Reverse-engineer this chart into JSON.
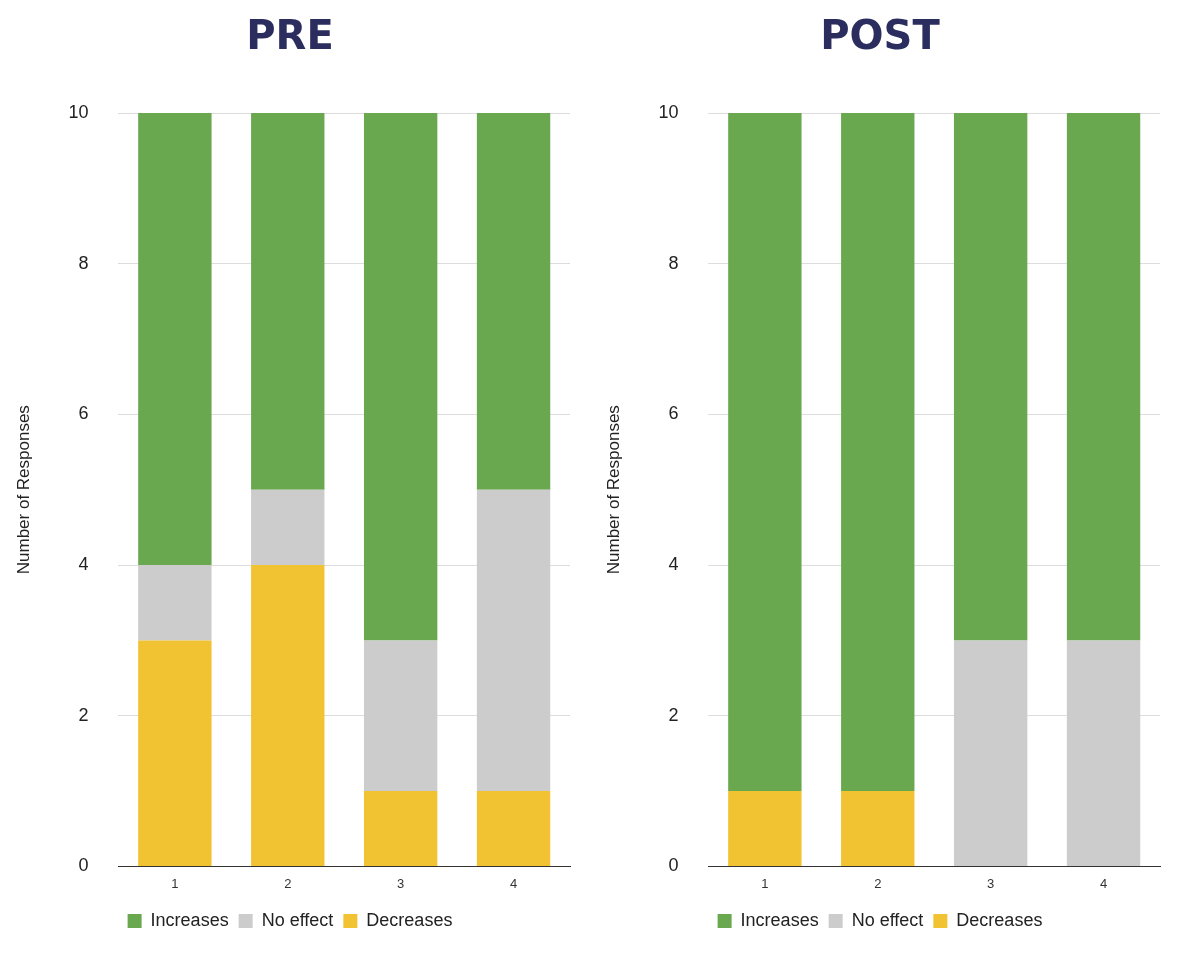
{
  "chart_data": [
    {
      "type": "bar",
      "title": "PRE",
      "ylabel": "Number of Responses",
      "categories": [
        "1",
        "2",
        "3",
        "4"
      ],
      "stacked": true,
      "grid": "y",
      "legend": "bottom",
      "ylim": [
        0,
        10
      ],
      "yticks": [
        0,
        2,
        4,
        6,
        8,
        10
      ],
      "series": [
        {
          "name": "Decreases",
          "color": "#f1c232",
          "values": [
            3,
            4,
            1,
            1
          ]
        },
        {
          "name": "No effect",
          "color": "#cccccc",
          "values": [
            1,
            1,
            2,
            4
          ]
        },
        {
          "name": "Increases",
          "color": "#6aa84f",
          "values": [
            6,
            5,
            7,
            5
          ]
        }
      ]
    },
    {
      "type": "bar",
      "title": "POST",
      "ylabel": "Number of Responses",
      "categories": [
        "1",
        "2",
        "3",
        "4"
      ],
      "stacked": true,
      "grid": "y",
      "legend": "bottom",
      "ylim": [
        0,
        10
      ],
      "yticks": [
        0,
        2,
        4,
        6,
        8,
        10
      ],
      "series": [
        {
          "name": "Decreases",
          "color": "#f1c232",
          "values": [
            1,
            1,
            0,
            0
          ]
        },
        {
          "name": "No effect",
          "color": "#cccccc",
          "values": [
            0,
            0,
            3,
            3
          ]
        },
        {
          "name": "Increases",
          "color": "#6aa84f",
          "values": [
            9,
            9,
            7,
            7
          ]
        }
      ]
    }
  ]
}
